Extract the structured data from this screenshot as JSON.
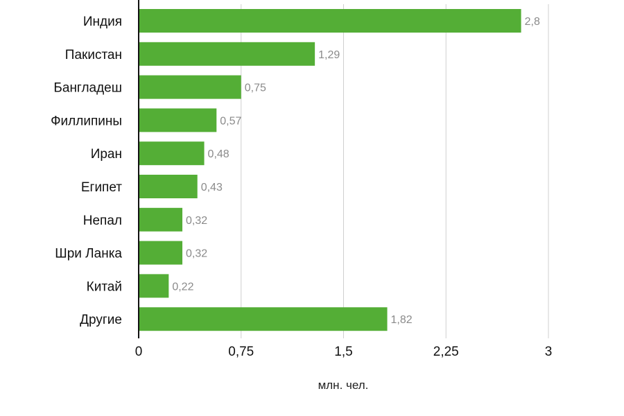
{
  "chart_data": {
    "type": "bar",
    "orientation": "horizontal",
    "categories": [
      "Индия",
      "Пакистан",
      "Бангладеш",
      "Филлипины",
      "Иран",
      "Египет",
      "Непал",
      "Шри Ланка",
      "Китай",
      "Другие"
    ],
    "values": [
      2.8,
      1.29,
      0.75,
      0.57,
      0.48,
      0.43,
      0.32,
      0.32,
      0.22,
      1.82
    ],
    "value_labels": [
      "2,8",
      "1,29",
      "0,75",
      "0,57",
      "0,48",
      "0,43",
      "0,32",
      "0,32",
      "0,22",
      "1,82"
    ],
    "xlim": [
      0,
      3
    ],
    "x_ticks": [
      0,
      0.75,
      1.5,
      2.25,
      3
    ],
    "x_tick_labels": [
      "0",
      "0,75",
      "1,5",
      "2,25",
      "3"
    ],
    "xlabel": "млн. чел.",
    "ylabel": "",
    "title": "",
    "grid": "vertical",
    "legend": "none",
    "bar_color": "#54ae36",
    "grid_color": "#cfcfcf",
    "axis_color": "#111111"
  }
}
